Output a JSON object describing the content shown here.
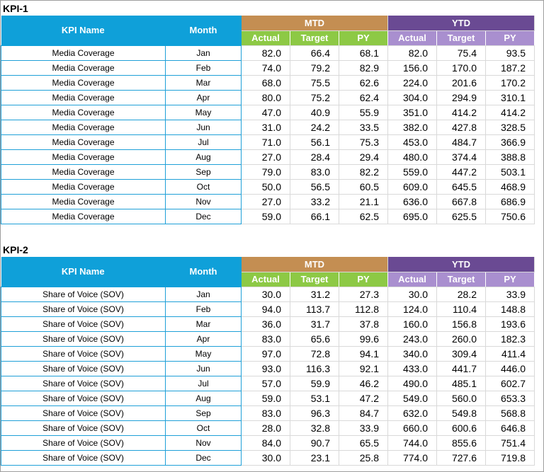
{
  "kpi1": {
    "title": "KPI-1",
    "headers": {
      "kpi_name": "KPI Name",
      "month": "Month",
      "mtd": "MTD",
      "ytd": "YTD",
      "actual": "Actual",
      "target": "Target",
      "py": "PY"
    },
    "rows": [
      {
        "name": "Media Coverage",
        "month": "Jan",
        "mtd_actual": "82.0",
        "mtd_target": "66.4",
        "mtd_py": "68.1",
        "ytd_actual": "82.0",
        "ytd_target": "75.4",
        "ytd_py": "93.5"
      },
      {
        "name": "Media Coverage",
        "month": "Feb",
        "mtd_actual": "74.0",
        "mtd_target": "79.2",
        "mtd_py": "82.9",
        "ytd_actual": "156.0",
        "ytd_target": "170.0",
        "ytd_py": "187.2"
      },
      {
        "name": "Media Coverage",
        "month": "Mar",
        "mtd_actual": "68.0",
        "mtd_target": "75.5",
        "mtd_py": "62.6",
        "ytd_actual": "224.0",
        "ytd_target": "201.6",
        "ytd_py": "170.2"
      },
      {
        "name": "Media Coverage",
        "month": "Apr",
        "mtd_actual": "80.0",
        "mtd_target": "75.2",
        "mtd_py": "62.4",
        "ytd_actual": "304.0",
        "ytd_target": "294.9",
        "ytd_py": "310.1"
      },
      {
        "name": "Media Coverage",
        "month": "May",
        "mtd_actual": "47.0",
        "mtd_target": "40.9",
        "mtd_py": "55.9",
        "ytd_actual": "351.0",
        "ytd_target": "414.2",
        "ytd_py": "414.2"
      },
      {
        "name": "Media Coverage",
        "month": "Jun",
        "mtd_actual": "31.0",
        "mtd_target": "24.2",
        "mtd_py": "33.5",
        "ytd_actual": "382.0",
        "ytd_target": "427.8",
        "ytd_py": "328.5"
      },
      {
        "name": "Media Coverage",
        "month": "Jul",
        "mtd_actual": "71.0",
        "mtd_target": "56.1",
        "mtd_py": "75.3",
        "ytd_actual": "453.0",
        "ytd_target": "484.7",
        "ytd_py": "366.9"
      },
      {
        "name": "Media Coverage",
        "month": "Aug",
        "mtd_actual": "27.0",
        "mtd_target": "28.4",
        "mtd_py": "29.4",
        "ytd_actual": "480.0",
        "ytd_target": "374.4",
        "ytd_py": "388.8"
      },
      {
        "name": "Media Coverage",
        "month": "Sep",
        "mtd_actual": "79.0",
        "mtd_target": "83.0",
        "mtd_py": "82.2",
        "ytd_actual": "559.0",
        "ytd_target": "447.2",
        "ytd_py": "503.1"
      },
      {
        "name": "Media Coverage",
        "month": "Oct",
        "mtd_actual": "50.0",
        "mtd_target": "56.5",
        "mtd_py": "60.5",
        "ytd_actual": "609.0",
        "ytd_target": "645.5",
        "ytd_py": "468.9"
      },
      {
        "name": "Media Coverage",
        "month": "Nov",
        "mtd_actual": "27.0",
        "mtd_target": "33.2",
        "mtd_py": "21.1",
        "ytd_actual": "636.0",
        "ytd_target": "667.8",
        "ytd_py": "686.9"
      },
      {
        "name": "Media Coverage",
        "month": "Dec",
        "mtd_actual": "59.0",
        "mtd_target": "66.1",
        "mtd_py": "62.5",
        "ytd_actual": "695.0",
        "ytd_target": "625.5",
        "ytd_py": "750.6"
      }
    ]
  },
  "kpi2": {
    "title": "KPI-2",
    "headers": {
      "kpi_name": "KPI Name",
      "month": "Month",
      "mtd": "MTD",
      "ytd": "YTD",
      "actual": "Actual",
      "target": "Target",
      "py": "PY"
    },
    "rows": [
      {
        "name": "Share of Voice (SOV)",
        "month": "Jan",
        "mtd_actual": "30.0",
        "mtd_target": "31.2",
        "mtd_py": "27.3",
        "ytd_actual": "30.0",
        "ytd_target": "28.2",
        "ytd_py": "33.9"
      },
      {
        "name": "Share of Voice (SOV)",
        "month": "Feb",
        "mtd_actual": "94.0",
        "mtd_target": "113.7",
        "mtd_py": "112.8",
        "ytd_actual": "124.0",
        "ytd_target": "110.4",
        "ytd_py": "148.8"
      },
      {
        "name": "Share of Voice (SOV)",
        "month": "Mar",
        "mtd_actual": "36.0",
        "mtd_target": "31.7",
        "mtd_py": "37.8",
        "ytd_actual": "160.0",
        "ytd_target": "156.8",
        "ytd_py": "193.6"
      },
      {
        "name": "Share of Voice (SOV)",
        "month": "Apr",
        "mtd_actual": "83.0",
        "mtd_target": "65.6",
        "mtd_py": "99.6",
        "ytd_actual": "243.0",
        "ytd_target": "260.0",
        "ytd_py": "182.3"
      },
      {
        "name": "Share of Voice (SOV)",
        "month": "May",
        "mtd_actual": "97.0",
        "mtd_target": "72.8",
        "mtd_py": "94.1",
        "ytd_actual": "340.0",
        "ytd_target": "309.4",
        "ytd_py": "411.4"
      },
      {
        "name": "Share of Voice (SOV)",
        "month": "Jun",
        "mtd_actual": "93.0",
        "mtd_target": "116.3",
        "mtd_py": "92.1",
        "ytd_actual": "433.0",
        "ytd_target": "441.7",
        "ytd_py": "446.0"
      },
      {
        "name": "Share of Voice (SOV)",
        "month": "Jul",
        "mtd_actual": "57.0",
        "mtd_target": "59.9",
        "mtd_py": "46.2",
        "ytd_actual": "490.0",
        "ytd_target": "485.1",
        "ytd_py": "602.7"
      },
      {
        "name": "Share of Voice (SOV)",
        "month": "Aug",
        "mtd_actual": "59.0",
        "mtd_target": "53.1",
        "mtd_py": "47.2",
        "ytd_actual": "549.0",
        "ytd_target": "560.0",
        "ytd_py": "653.3"
      },
      {
        "name": "Share of Voice (SOV)",
        "month": "Sep",
        "mtd_actual": "83.0",
        "mtd_target": "96.3",
        "mtd_py": "84.7",
        "ytd_actual": "632.0",
        "ytd_target": "549.8",
        "ytd_py": "568.8"
      },
      {
        "name": "Share of Voice (SOV)",
        "month": "Oct",
        "mtd_actual": "28.0",
        "mtd_target": "32.8",
        "mtd_py": "33.9",
        "ytd_actual": "660.0",
        "ytd_target": "600.6",
        "ytd_py": "646.8"
      },
      {
        "name": "Share of Voice (SOV)",
        "month": "Nov",
        "mtd_actual": "84.0",
        "mtd_target": "90.7",
        "mtd_py": "65.5",
        "ytd_actual": "744.0",
        "ytd_target": "855.6",
        "ytd_py": "751.4"
      },
      {
        "name": "Share of Voice (SOV)",
        "month": "Dec",
        "mtd_actual": "30.0",
        "mtd_target": "23.1",
        "mtd_py": "25.8",
        "ytd_actual": "774.0",
        "ytd_target": "727.6",
        "ytd_py": "719.8"
      }
    ]
  }
}
